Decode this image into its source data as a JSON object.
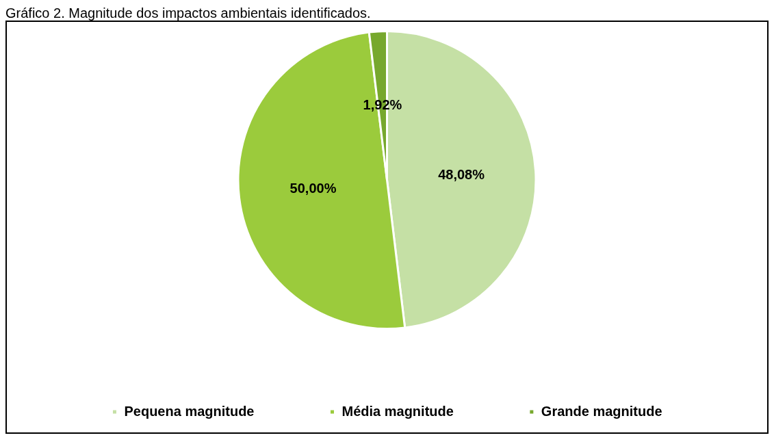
{
  "chart_data": {
    "type": "pie",
    "title": "Gráfico 2. Magnitude dos impactos ambientais identificados.",
    "categories": [
      "Pequena magnitude",
      "Média magnitude",
      "Grande magnitude"
    ],
    "values": [
      48.08,
      50.0,
      1.92
    ],
    "colors": [
      "#c5e0a5",
      "#9bcb3c",
      "#77a82d"
    ],
    "value_labels": [
      "48,08%",
      "50,00%",
      "1,92%"
    ],
    "legend": "bottom"
  }
}
